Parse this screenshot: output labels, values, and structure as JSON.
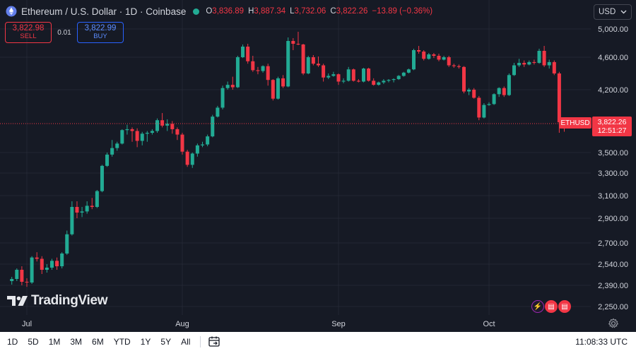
{
  "header": {
    "symbol_title": "Ethereum / U.S. Dollar · 1D · Coinbase",
    "ohlc": [
      {
        "label": "O",
        "value": "3,836.89"
      },
      {
        "label": "H",
        "value": "3,887.34"
      },
      {
        "label": "L",
        "value": "3,732.06"
      },
      {
        "label": "C",
        "value": "3,822.26"
      }
    ],
    "change": "−13.89 (−0.36%)"
  },
  "trade": {
    "sell_price": "3,822.98",
    "sell_label": "SELL",
    "spread": "0.01",
    "buy_price": "3,822.99",
    "buy_label": "BUY"
  },
  "currency": {
    "value": "USD",
    "icon": "chevron-down-icon"
  },
  "watermark": "TradingView",
  "last_price": {
    "ticker": "ETHUSD",
    "value": "3,822.26",
    "countdown": "12:51:27"
  },
  "bottom_bar": {
    "ranges": [
      "1D",
      "5D",
      "1M",
      "3M",
      "6M",
      "YTD",
      "1Y",
      "5Y",
      "All"
    ],
    "clock": "11:08:33 UTC"
  },
  "colors": {
    "up": "#22ab94",
    "down": "#f23645",
    "background": "#161a25",
    "grid": "#232733"
  },
  "chart_data": {
    "type": "candlestick",
    "y_ticks": [
      5000,
      4600,
      4200,
      3500,
      3300,
      3100,
      2900,
      2700,
      2540,
      2390,
      2250
    ],
    "y_tick_labels": [
      "5,000.00",
      "4,600.00",
      "4,200.00",
      "3,500.00",
      "3,300.00",
      "3,100.00",
      "2,900.00",
      "2,700.00",
      "2,540.00",
      "2,390.00",
      "2,250.00"
    ],
    "x_ticks": [
      {
        "label": "Jul",
        "date": "2025-07-01"
      },
      {
        "label": "Aug",
        "date": "2025-08-01"
      },
      {
        "label": "Sep",
        "date": "2025-09-01"
      },
      {
        "label": "Oct",
        "date": "2025-10-01"
      }
    ],
    "last_close": 3822.26,
    "candles": [
      [
        "2025-06-28",
        2420,
        2450,
        2395,
        2435
      ],
      [
        "2025-06-29",
        2435,
        2510,
        2420,
        2500
      ],
      [
        "2025-06-30",
        2500,
        2525,
        2390,
        2415
      ],
      [
        "2025-07-01",
        2415,
        2440,
        2380,
        2410
      ],
      [
        "2025-07-02",
        2410,
        2600,
        2400,
        2590
      ],
      [
        "2025-07-03",
        2590,
        2630,
        2560,
        2580
      ],
      [
        "2025-07-04",
        2580,
        2600,
        2470,
        2500
      ],
      [
        "2025-07-05",
        2500,
        2540,
        2480,
        2515
      ],
      [
        "2025-07-06",
        2515,
        2580,
        2500,
        2565
      ],
      [
        "2025-07-07",
        2565,
        2590,
        2500,
        2525
      ],
      [
        "2025-07-08",
        2525,
        2630,
        2510,
        2620
      ],
      [
        "2025-07-09",
        2620,
        2800,
        2610,
        2770
      ],
      [
        "2025-07-10",
        2770,
        3050,
        2760,
        3000
      ],
      [
        "2025-07-11",
        3000,
        3050,
        2900,
        2950
      ],
      [
        "2025-07-12",
        2950,
        3000,
        2910,
        2960
      ],
      [
        "2025-07-13",
        2960,
        3050,
        2940,
        3010
      ],
      [
        "2025-07-14",
        3010,
        3080,
        2980,
        3000
      ],
      [
        "2025-07-15",
        3000,
        3150,
        2990,
        3140
      ],
      [
        "2025-07-16",
        3140,
        3380,
        3130,
        3370
      ],
      [
        "2025-07-17",
        3370,
        3500,
        3360,
        3480
      ],
      [
        "2025-07-18",
        3480,
        3640,
        3460,
        3550
      ],
      [
        "2025-07-19",
        3550,
        3620,
        3520,
        3600
      ],
      [
        "2025-07-20",
        3600,
        3760,
        3590,
        3750
      ],
      [
        "2025-07-21",
        3750,
        3810,
        3700,
        3760
      ],
      [
        "2025-07-22",
        3760,
        3780,
        3620,
        3740
      ],
      [
        "2025-07-23",
        3740,
        3770,
        3560,
        3630
      ],
      [
        "2025-07-24",
        3630,
        3730,
        3580,
        3710
      ],
      [
        "2025-07-25",
        3710,
        3740,
        3620,
        3720
      ],
      [
        "2025-07-26",
        3720,
        3760,
        3700,
        3740
      ],
      [
        "2025-07-27",
        3740,
        3880,
        3720,
        3860
      ],
      [
        "2025-07-28",
        3860,
        3940,
        3780,
        3800
      ],
      [
        "2025-07-29",
        3800,
        3870,
        3740,
        3820
      ],
      [
        "2025-07-30",
        3820,
        3850,
        3710,
        3760
      ],
      [
        "2025-07-31",
        3760,
        3780,
        3640,
        3700
      ],
      [
        "2025-08-01",
        3700,
        3720,
        3480,
        3510
      ],
      [
        "2025-08-02",
        3510,
        3530,
        3360,
        3380
      ],
      [
        "2025-08-03",
        3380,
        3500,
        3350,
        3490
      ],
      [
        "2025-08-04",
        3490,
        3600,
        3460,
        3580
      ],
      [
        "2025-08-05",
        3580,
        3620,
        3560,
        3590
      ],
      [
        "2025-08-06",
        3590,
        3700,
        3570,
        3680
      ],
      [
        "2025-08-07",
        3680,
        3920,
        3670,
        3900
      ],
      [
        "2025-08-08",
        3900,
        4020,
        3890,
        4000
      ],
      [
        "2025-08-09",
        4000,
        4250,
        3980,
        4220
      ],
      [
        "2025-08-10",
        4220,
        4300,
        4200,
        4260
      ],
      [
        "2025-08-11",
        4260,
        4360,
        4200,
        4230
      ],
      [
        "2025-08-12",
        4230,
        4620,
        4220,
        4600
      ],
      [
        "2025-08-13",
        4600,
        4780,
        4590,
        4750
      ],
      [
        "2025-08-14",
        4750,
        4790,
        4520,
        4550
      ],
      [
        "2025-08-15",
        4550,
        4620,
        4420,
        4440
      ],
      [
        "2025-08-16",
        4440,
        4480,
        4390,
        4430
      ],
      [
        "2025-08-17",
        4430,
        4500,
        4410,
        4490
      ],
      [
        "2025-08-18",
        4490,
        4520,
        4250,
        4320
      ],
      [
        "2025-08-19",
        4320,
        4330,
        4080,
        4100
      ],
      [
        "2025-08-20",
        4100,
        4360,
        4090,
        4340
      ],
      [
        "2025-08-21",
        4340,
        4380,
        4220,
        4240
      ],
      [
        "2025-08-22",
        4240,
        4880,
        4230,
        4830
      ],
      [
        "2025-08-23",
        4830,
        4870,
        4700,
        4790
      ],
      [
        "2025-08-24",
        4790,
        4960,
        4770,
        4780
      ],
      [
        "2025-08-25",
        4780,
        4790,
        4380,
        4400
      ],
      [
        "2025-08-26",
        4400,
        4620,
        4390,
        4600
      ],
      [
        "2025-08-27",
        4600,
        4630,
        4500,
        4520
      ],
      [
        "2025-08-28",
        4520,
        4610,
        4480,
        4500
      ],
      [
        "2025-08-29",
        4500,
        4520,
        4300,
        4350
      ],
      [
        "2025-08-30",
        4350,
        4400,
        4330,
        4370
      ],
      [
        "2025-08-31",
        4370,
        4420,
        4360,
        4390
      ],
      [
        "2025-09-01",
        4390,
        4400,
        4260,
        4300
      ],
      [
        "2025-09-02",
        4300,
        4340,
        4280,
        4310
      ],
      [
        "2025-09-03",
        4310,
        4480,
        4300,
        4450
      ],
      [
        "2025-09-04",
        4450,
        4460,
        4300,
        4310
      ],
      [
        "2025-09-05",
        4310,
        4330,
        4290,
        4300
      ],
      [
        "2025-09-06",
        4300,
        4470,
        4290,
        4460
      ],
      [
        "2025-09-07",
        4460,
        4470,
        4300,
        4310
      ],
      [
        "2025-09-08",
        4310,
        4340,
        4250,
        4260
      ],
      [
        "2025-09-09",
        4260,
        4300,
        4250,
        4290
      ],
      [
        "2025-09-10",
        4290,
        4330,
        4270,
        4310
      ],
      [
        "2025-09-11",
        4310,
        4330,
        4290,
        4320
      ],
      [
        "2025-09-12",
        4320,
        4340,
        4290,
        4330
      ],
      [
        "2025-09-13",
        4330,
        4380,
        4320,
        4370
      ],
      [
        "2025-09-14",
        4370,
        4420,
        4360,
        4410
      ],
      [
        "2025-09-15",
        4410,
        4460,
        4400,
        4450
      ],
      [
        "2025-09-16",
        4450,
        4720,
        4440,
        4700
      ],
      [
        "2025-09-17",
        4700,
        4760,
        4650,
        4680
      ],
      [
        "2025-09-18",
        4680,
        4700,
        4560,
        4580
      ],
      [
        "2025-09-19",
        4580,
        4660,
        4570,
        4640
      ],
      [
        "2025-09-20",
        4640,
        4660,
        4590,
        4620
      ],
      [
        "2025-09-21",
        4620,
        4650,
        4550,
        4570
      ],
      [
        "2025-09-22",
        4570,
        4620,
        4560,
        4600
      ],
      [
        "2025-09-23",
        4600,
        4620,
        4480,
        4500
      ],
      [
        "2025-09-24",
        4500,
        4520,
        4470,
        4490
      ],
      [
        "2025-09-25",
        4490,
        4510,
        4460,
        4480
      ],
      [
        "2025-09-26",
        4480,
        4490,
        4160,
        4180
      ],
      [
        "2025-09-27",
        4180,
        4220,
        4140,
        4200
      ],
      [
        "2025-09-28",
        4200,
        4220,
        4100,
        4110
      ],
      [
        "2025-09-29",
        4110,
        4130,
        3860,
        3890
      ],
      [
        "2025-09-30",
        3890,
        4050,
        3880,
        4030
      ],
      [
        "2025-10-01",
        4030,
        4060,
        4020,
        4040
      ],
      [
        "2025-10-02",
        4040,
        4160,
        4030,
        4150
      ],
      [
        "2025-10-03",
        4150,
        4230,
        4120,
        4220
      ],
      [
        "2025-10-04",
        4220,
        4240,
        4120,
        4140
      ],
      [
        "2025-10-05",
        4140,
        4400,
        4130,
        4380
      ],
      [
        "2025-10-06",
        4380,
        4530,
        4370,
        4500
      ],
      [
        "2025-10-07",
        4500,
        4580,
        4480,
        4530
      ],
      [
        "2025-10-08",
        4530,
        4560,
        4480,
        4510
      ],
      [
        "2025-10-09",
        4510,
        4560,
        4500,
        4540
      ],
      [
        "2025-10-10",
        4540,
        4570,
        4510,
        4530
      ],
      [
        "2025-10-11",
        4530,
        4720,
        4520,
        4690
      ],
      [
        "2025-10-12",
        4690,
        4760,
        4480,
        4500
      ],
      [
        "2025-10-13",
        4500,
        4570,
        4460,
        4540
      ],
      [
        "2025-10-14",
        4540,
        4560,
        4380,
        4400
      ],
      [
        "2025-10-15",
        4400,
        4420,
        3720,
        3836.89
      ],
      [
        "2025-10-16",
        3836.89,
        3887.34,
        3732.06,
        3822.26
      ]
    ]
  }
}
